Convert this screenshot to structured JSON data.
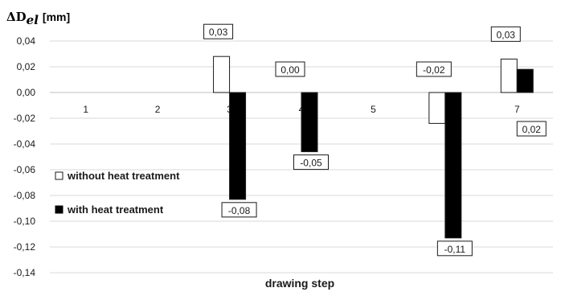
{
  "chart_data": {
    "type": "bar",
    "ylabel": "ΔD_el [mm]",
    "ylabel_main": "ΔD",
    "ylabel_sub": "el",
    "ylabel_unit": "[mm]",
    "xlabel": "drawing step",
    "categories": [
      "1",
      "2",
      "3",
      "4",
      "5",
      "6",
      "7"
    ],
    "ylim": [
      -0.14,
      0.04
    ],
    "yticks": [
      0.04,
      0.02,
      0.0,
      -0.02,
      -0.04,
      -0.06,
      -0.08,
      -0.1,
      -0.12,
      -0.14
    ],
    "ytick_labels": [
      "0,04",
      "0,02",
      "0,00",
      "-0,02",
      "-0,04",
      "-0,06",
      "-0,08",
      "-0,10",
      "-0,12",
      "-0,14"
    ],
    "grid": true,
    "legend_position": "left",
    "series": [
      {
        "name": "without heat treatment",
        "color": "#ffffff",
        "values": [
          null,
          null,
          0.028,
          null,
          null,
          -0.024,
          0.026
        ]
      },
      {
        "name": "with heat treatment",
        "color": "#000000",
        "values": [
          null,
          null,
          -0.083,
          -0.046,
          null,
          -0.113,
          0.018
        ]
      }
    ],
    "data_labels": [
      {
        "series": 0,
        "category": 2,
        "text": "0,03"
      },
      {
        "series": 1,
        "category": 2,
        "text": "-0,08"
      },
      {
        "series": 0,
        "category": 3,
        "text": "0,00"
      },
      {
        "series": 1,
        "category": 3,
        "text": "-0,05"
      },
      {
        "series": 0,
        "category": 5,
        "text": "-0,02"
      },
      {
        "series": 1,
        "category": 5,
        "text": "-0,11"
      },
      {
        "series": 0,
        "category": 6,
        "text": "0,03"
      },
      {
        "series": 1,
        "category": 6,
        "text": "0,02"
      }
    ]
  }
}
